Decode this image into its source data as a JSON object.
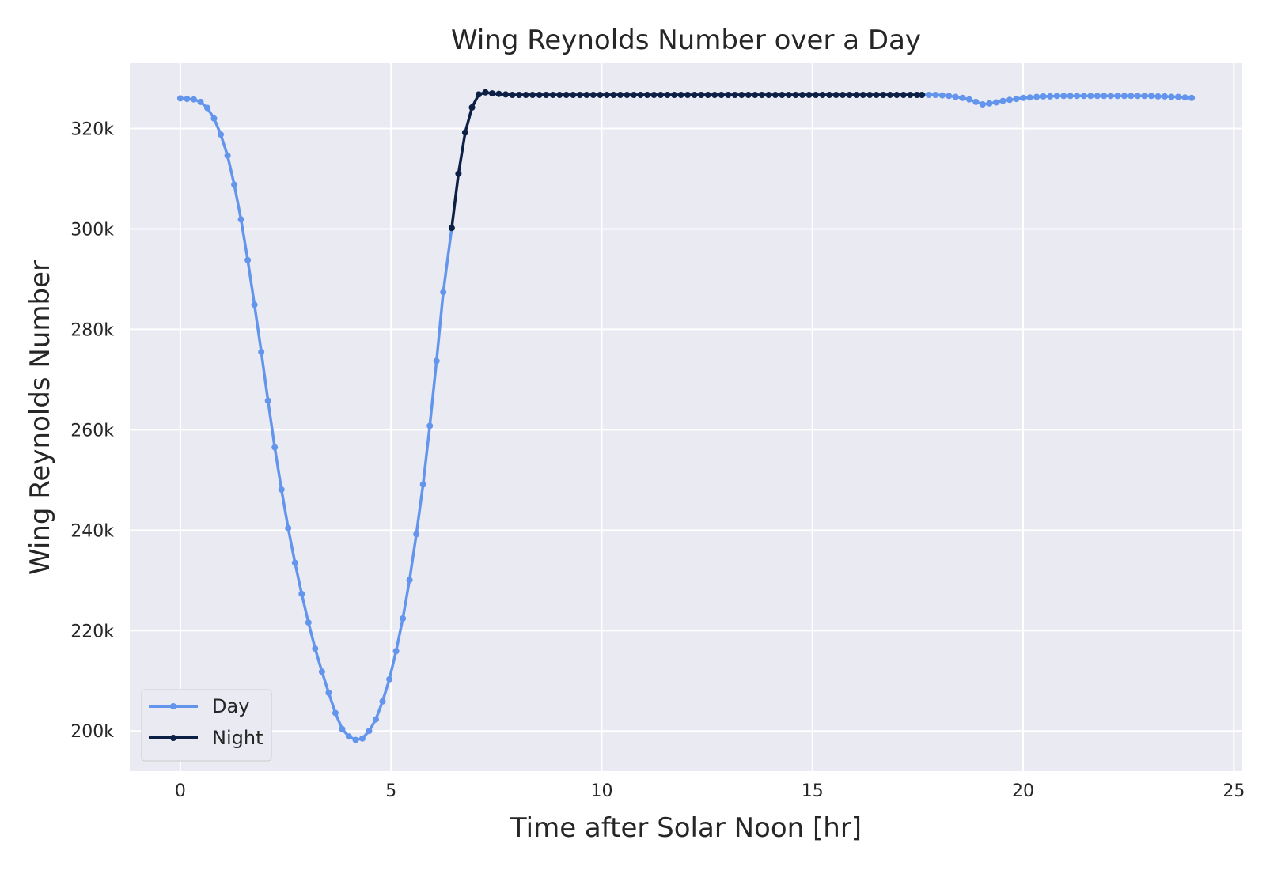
{
  "chart_data": {
    "type": "line",
    "title": "Wing Reynolds Number over a Day",
    "xlabel": "Time after Solar Noon [hr]",
    "ylabel": "Wing Reynolds Number",
    "xlim": [
      -1.2,
      25.2
    ],
    "ylim": [
      192000,
      333000
    ],
    "xticks": [
      0,
      5,
      10,
      15,
      20,
      25
    ],
    "xtick_labels": [
      "0",
      "5",
      "10",
      "15",
      "20",
      "25"
    ],
    "yticks": [
      200000,
      220000,
      240000,
      260000,
      280000,
      300000,
      320000
    ],
    "ytick_labels": [
      "200k",
      "220k",
      "240k",
      "260k",
      "280k",
      "300k",
      "320k"
    ],
    "grid": true,
    "legend_position": "bottom-left",
    "series": [
      {
        "name": "Day",
        "color": "#6495ED",
        "segments": [
          {
            "x": [
              0.0,
              0.16,
              0.32,
              0.48,
              0.64,
              0.8,
              0.96,
              1.12,
              1.28,
              1.44,
              1.6,
              1.76,
              1.92,
              2.08,
              2.24,
              2.4,
              2.56,
              2.72,
              2.88,
              3.04,
              3.2,
              3.36,
              3.52,
              3.68,
              3.84,
              4.0,
              4.16,
              4.32,
              4.48,
              4.64,
              4.8,
              4.96,
              5.12,
              5.28,
              5.44,
              5.6,
              5.76,
              5.92,
              6.08,
              6.24,
              6.44
            ],
            "y": [
              326000,
              325900,
              325800,
              325300,
              324100,
              322000,
              318800,
              314600,
              308800,
              301900,
              293800,
              284900,
              275500,
              265800,
              256500,
              248100,
              240400,
              233500,
              227300,
              221600,
              216400,
              211800,
              207600,
              203600,
              200400,
              198900,
              198200,
              198500,
              200000,
              202300,
              205900,
              210300,
              215900,
              222400,
              230100,
              239200,
              249100,
              260800,
              273700,
              287400,
              300200
            ]
          },
          {
            "x": [
              17.6,
              17.76,
              17.92,
              18.08,
              18.24,
              18.4,
              18.56,
              18.72,
              18.88,
              19.04,
              19.2,
              19.36,
              19.52,
              19.68,
              19.84,
              20.0,
              20.16,
              20.32,
              20.48,
              20.64,
              20.8,
              20.96,
              21.12,
              21.28,
              21.44,
              21.6,
              21.76,
              21.92,
              22.08,
              22.24,
              22.4,
              22.56,
              22.72,
              22.88,
              23.04,
              23.2,
              23.36,
              23.52,
              23.68,
              23.84,
              24.0
            ],
            "y": [
              326700,
              326700,
              326700,
              326600,
              326500,
              326300,
              326100,
              325800,
              325300,
              324800,
              325000,
              325200,
              325500,
              325700,
              325900,
              326100,
              326200,
              326300,
              326400,
              326400,
              326500,
              326500,
              326500,
              326500,
              326500,
              326500,
              326500,
              326500,
              326500,
              326500,
              326500,
              326500,
              326500,
              326500,
              326500,
              326400,
              326400,
              326300,
              326300,
              326200,
              326100
            ]
          }
        ]
      },
      {
        "name": "Night",
        "color": "#0C1F45",
        "segments": [
          {
            "x": [
              6.44,
              6.6,
              6.76,
              6.92,
              7.08,
              7.24,
              7.4,
              7.56,
              7.72,
              7.88,
              8.04,
              8.2,
              8.36,
              8.52,
              8.68,
              8.84,
              9.0,
              9.16,
              9.32,
              9.48,
              9.64,
              9.8,
              9.96,
              10.12,
              10.28,
              10.44,
              10.6,
              10.76,
              10.92,
              11.08,
              11.24,
              11.4,
              11.56,
              11.72,
              11.88,
              12.04,
              12.2,
              12.36,
              12.52,
              12.68,
              12.84,
              13.0,
              13.16,
              13.32,
              13.48,
              13.64,
              13.8,
              13.96,
              14.12,
              14.28,
              14.44,
              14.6,
              14.76,
              14.92,
              15.08,
              15.24,
              15.4,
              15.56,
              15.72,
              15.88,
              16.04,
              16.2,
              16.36,
              16.52,
              16.68,
              16.84,
              17.0,
              17.16,
              17.32,
              17.48,
              17.6
            ],
            "y": [
              300200,
              311000,
              319200,
              324200,
              326800,
              327200,
              327000,
              326900,
              326800,
              326700,
              326700,
              326700,
              326700,
              326700,
              326700,
              326700,
              326700,
              326700,
              326700,
              326700,
              326700,
              326700,
              326700,
              326700,
              326700,
              326700,
              326700,
              326700,
              326700,
              326700,
              326700,
              326700,
              326700,
              326700,
              326700,
              326700,
              326700,
              326700,
              326700,
              326700,
              326700,
              326700,
              326700,
              326700,
              326700,
              326700,
              326700,
              326700,
              326700,
              326700,
              326700,
              326700,
              326700,
              326700,
              326700,
              326700,
              326700,
              326700,
              326700,
              326700,
              326700,
              326700,
              326700,
              326700,
              326700,
              326700,
              326700,
              326700,
              326700,
              326700,
              326700
            ]
          }
        ]
      }
    ]
  }
}
